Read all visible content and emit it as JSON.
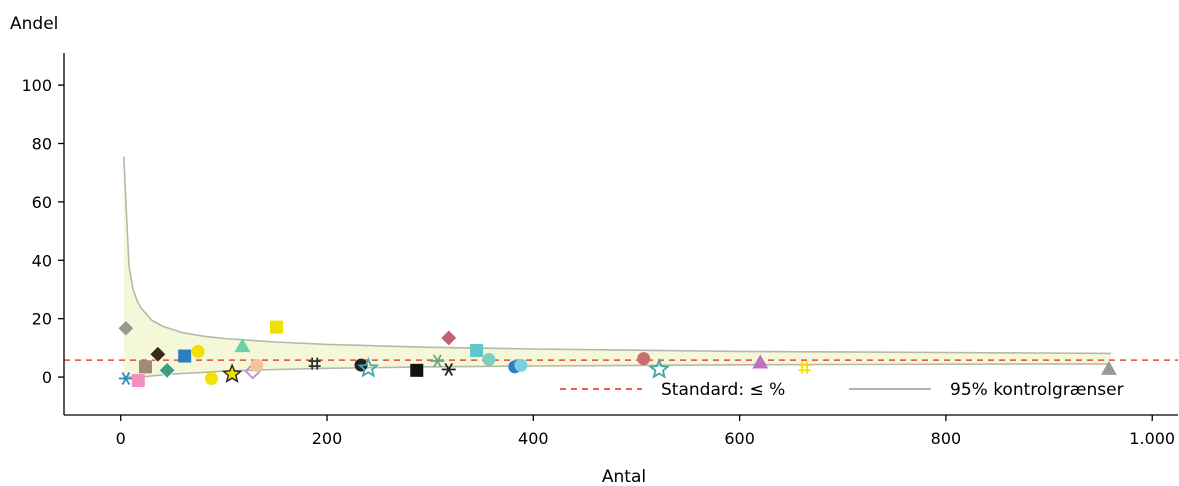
{
  "chart_data": {
    "type": "scatter",
    "title": "",
    "xlabel": "Antal",
    "ylabel": "Andel",
    "xlim": [
      -55,
      1025
    ],
    "ylim": [
      -13,
      111
    ],
    "x_ticks": [
      0,
      200,
      400,
      600,
      800,
      1000
    ],
    "x_tick_labels": [
      "0",
      "200",
      "400",
      "600",
      "800",
      "1.000"
    ],
    "y_ticks": [
      0,
      20,
      40,
      60,
      80,
      100
    ],
    "y_tick_labels": [
      "0",
      "20",
      "40",
      "60",
      "80",
      "100"
    ],
    "grid": false,
    "standard_value": 5.8,
    "control_limits": {
      "x": [
        3,
        5,
        8,
        12,
        16,
        20,
        30,
        40,
        60,
        80,
        100,
        150,
        200,
        300,
        400,
        600,
        800,
        960
      ],
      "upper": [
        75.5,
        60,
        38,
        30,
        26,
        23.5,
        19.5,
        17.5,
        15.2,
        14,
        13.2,
        12,
        11.2,
        10.2,
        9.6,
        8.8,
        8.4,
        8.1
      ],
      "lower": [
        0,
        0,
        0,
        0,
        0,
        0,
        0.4,
        0.7,
        1.2,
        1.6,
        2,
        2.6,
        3,
        3.5,
        3.8,
        4.2,
        4.4,
        4.5
      ]
    },
    "points": [
      {
        "x": 5,
        "y": 16.7,
        "shape": "diamond",
        "color": "#9a9a8c"
      },
      {
        "x": 5,
        "y": -0.5,
        "shape": "asterisk",
        "color": "#2e8bc0"
      },
      {
        "x": 17,
        "y": -1.2,
        "shape": "square",
        "color": "#f48fc1"
      },
      {
        "x": 24,
        "y": 3.5,
        "shape": "square",
        "color": "#a08a78"
      },
      {
        "x": 36,
        "y": 7.8,
        "shape": "diamond",
        "color": "#3a2a18"
      },
      {
        "x": 45,
        "y": 2.3,
        "shape": "diamond",
        "color": "#3f9e80"
      },
      {
        "x": 62,
        "y": 7.2,
        "shape": "square",
        "color": "#2e7fc0"
      },
      {
        "x": 75,
        "y": 8.8,
        "shape": "circle",
        "color": "#f2e100"
      },
      {
        "x": 88,
        "y": -0.5,
        "shape": "circle",
        "color": "#f2e100"
      },
      {
        "x": 108,
        "y": 1.0,
        "shape": "star",
        "color": "#f2e100"
      },
      {
        "x": 118,
        "y": 10.6,
        "shape": "triangle",
        "color": "#6ccfa8"
      },
      {
        "x": 128,
        "y": 2.0,
        "shape": "diamond-open",
        "color": "#c08ad0"
      },
      {
        "x": 132,
        "y": 4.0,
        "shape": "circle",
        "color": "#f3c49c"
      },
      {
        "x": 151,
        "y": 17.1,
        "shape": "square",
        "color": "#f2e100"
      },
      {
        "x": 188,
        "y": 4.6,
        "shape": "hash",
        "color": "#333333"
      },
      {
        "x": 233,
        "y": 4.1,
        "shape": "circle",
        "color": "#222222"
      },
      {
        "x": 240,
        "y": 3.0,
        "shape": "star-open",
        "color": "#40a8b0"
      },
      {
        "x": 287,
        "y": 2.3,
        "shape": "square",
        "color": "#111111"
      },
      {
        "x": 307,
        "y": 5.5,
        "shape": "asterisk",
        "color": "#6aa87a"
      },
      {
        "x": 318,
        "y": 13.4,
        "shape": "diamond",
        "color": "#c06070"
      },
      {
        "x": 318,
        "y": 2.6,
        "shape": "asterisk",
        "color": "#222222"
      },
      {
        "x": 345,
        "y": 9.1,
        "shape": "square",
        "color": "#5cc8c8"
      },
      {
        "x": 357,
        "y": 6.0,
        "shape": "circle",
        "color": "#7ccfc0"
      },
      {
        "x": 382,
        "y": 3.5,
        "shape": "circle",
        "color": "#2e7fc0"
      },
      {
        "x": 388,
        "y": 4.0,
        "shape": "circle",
        "color": "#7ccfe0"
      },
      {
        "x": 507,
        "y": 6.3,
        "shape": "circle",
        "color": "#c87070"
      },
      {
        "x": 522,
        "y": 2.6,
        "shape": "star-open",
        "color": "#40a8a8"
      },
      {
        "x": 620,
        "y": 5.0,
        "shape": "triangle",
        "color": "#c070c0"
      },
      {
        "x": 663,
        "y": 3.2,
        "shape": "hash",
        "color": "#f2e100"
      },
      {
        "x": 958,
        "y": 2.8,
        "shape": "triangle",
        "color": "#9a9a9a"
      }
    ],
    "legend": [
      {
        "label": "Standard: ≤  %",
        "style": "dashed",
        "color": "#e8483a"
      },
      {
        "label": "95% kontrolgrænser",
        "style": "solid",
        "color": "#a8a8a8"
      }
    ],
    "legend_position": "bottom-right",
    "colors": {
      "band_fill": "#f5f7d9",
      "limit_line": "#b8b8a8",
      "standard_line": "#e8483a",
      "axis": "#000000"
    }
  }
}
